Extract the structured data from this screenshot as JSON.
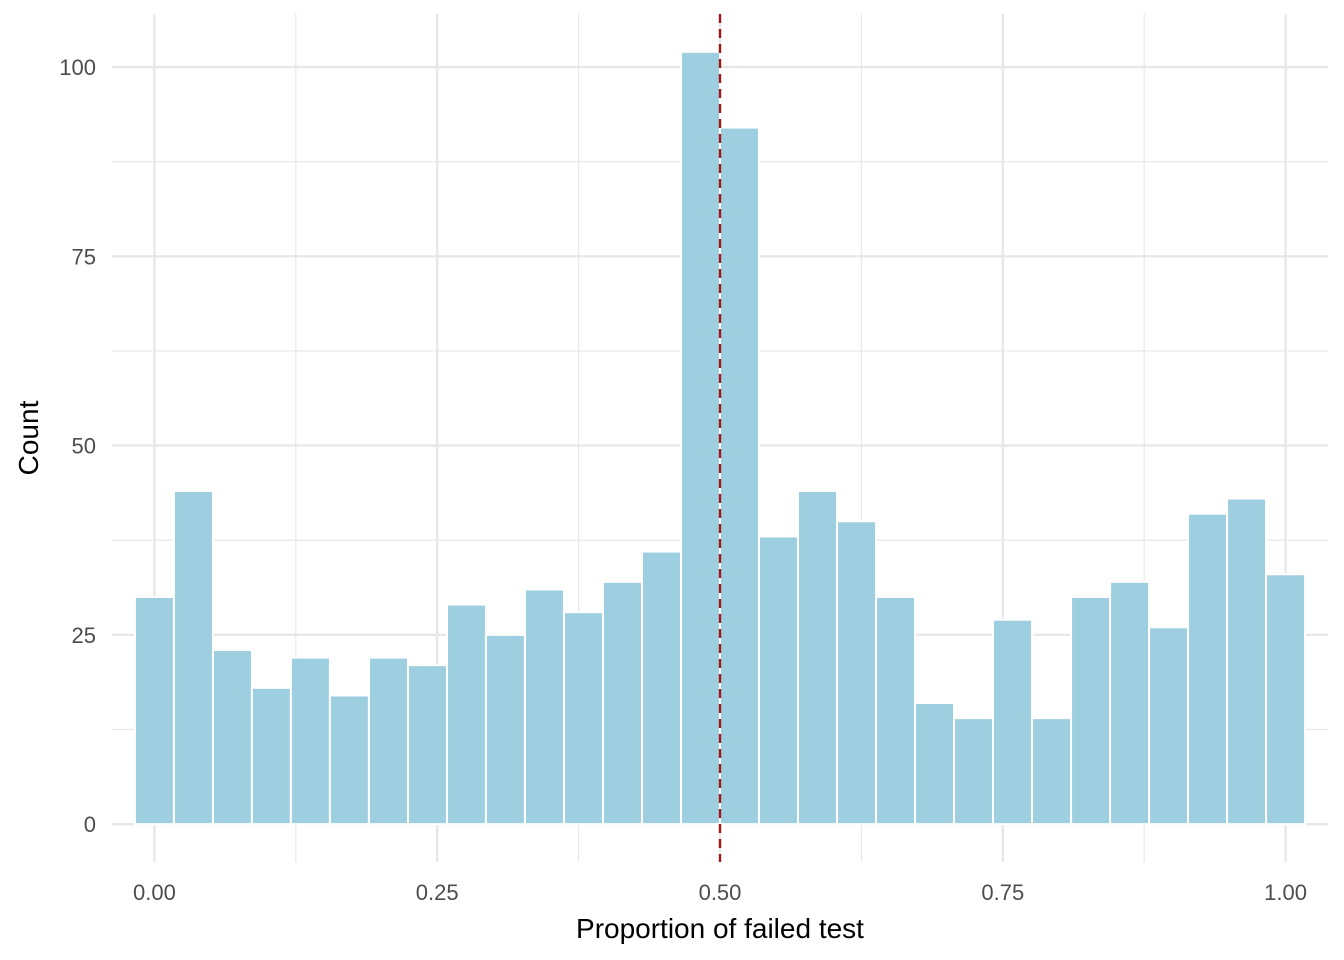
{
  "chart_data": {
    "type": "bar",
    "subtype": "histogram",
    "title": "",
    "xlabel": "Proportion of failed test",
    "ylabel": "Count",
    "xlim": [
      -0.0375,
      1.0375
    ],
    "ylim": [
      -5,
      107
    ],
    "x_ticks": [
      0.0,
      0.25,
      0.5,
      0.75,
      1.0
    ],
    "x_tick_labels": [
      "0.00",
      "0.25",
      "0.50",
      "0.75",
      "1.00"
    ],
    "y_ticks": [
      0,
      25,
      50,
      75,
      100
    ],
    "y_tick_labels": [
      "0",
      "25",
      "50",
      "75",
      "100"
    ],
    "bin_width": 0.0345,
    "bin_centers": [
      0.0,
      0.0345,
      0.069,
      0.1034,
      0.1379,
      0.1724,
      0.2069,
      0.2414,
      0.2759,
      0.3103,
      0.3448,
      0.3793,
      0.4138,
      0.4483,
      0.4828,
      0.5172,
      0.5517,
      0.5862,
      0.6207,
      0.6552,
      0.6897,
      0.7241,
      0.7586,
      0.7931,
      0.8276,
      0.8621,
      0.8966,
      0.931,
      0.9655,
      1.0
    ],
    "values": [
      30,
      44,
      23,
      18,
      22,
      17,
      22,
      21,
      29,
      25,
      31,
      28,
      32,
      36,
      102,
      92,
      38,
      44,
      40,
      30,
      16,
      14,
      27,
      14,
      30,
      32,
      26,
      41,
      43,
      33
    ],
    "reference_line": {
      "x": 0.5,
      "style": "dashed"
    },
    "grid": true,
    "legend": "none",
    "colors": {
      "bar_fill": "#9ecfe0",
      "bar_border": "#ffffff",
      "reference_line": "#9e1a1a",
      "grid": "#e8e8e8"
    }
  }
}
